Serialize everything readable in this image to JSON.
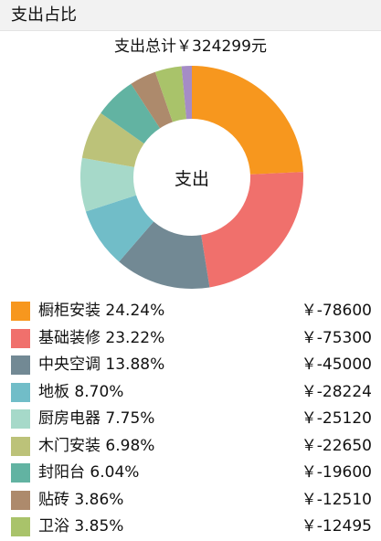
{
  "header": {
    "title": "支出占比"
  },
  "summary": {
    "total_label": "支出总计",
    "total_value": "￥324299元"
  },
  "chart_data": {
    "type": "pie",
    "center_label": "支出",
    "currency": "￥",
    "categories": [
      "橱柜安装",
      "基础装修",
      "中央空调",
      "地板",
      "厨房电器",
      "木门安装",
      "封阳台",
      "贴砖",
      "卫浴"
    ],
    "percent_labels": [
      "24.24%",
      "23.22%",
      "13.88%",
      "8.70%",
      "7.75%",
      "6.98%",
      "6.04%",
      "3.86%",
      "3.85%"
    ],
    "values": [
      -78600,
      -75300,
      -45000,
      -28224,
      -25120,
      -22650,
      -19600,
      -12510,
      -12495
    ],
    "amount_labels": [
      "-78600",
      "-75300",
      "-45000",
      "-28224",
      "-25120",
      "-22650",
      "-19600",
      "-12510",
      "-12495"
    ],
    "colors": [
      "#f7971e",
      "#f0706c",
      "#728994",
      "#71bdc8",
      "#a6d9c9",
      "#bcc279",
      "#62b3a2",
      "#ad8a6c",
      "#a9c36a",
      "#a58cc6"
    ],
    "legend_position": "bottom"
  }
}
